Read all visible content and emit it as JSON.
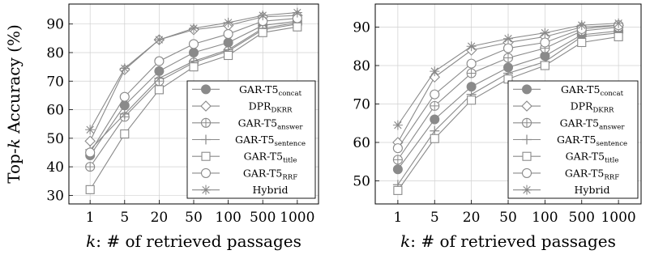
{
  "chart_data": [
    {
      "type": "line",
      "x": [
        "1",
        "5",
        "20",
        "50",
        "100",
        "500",
        "1000"
      ],
      "xlabel_var": "k",
      "xlabel_rest": ": # of retrieved passages",
      "ylabel_pre": "Top-",
      "ylabel_var": "k",
      "ylabel_post": " Accuracy (%)",
      "ylim": [
        27,
        97
      ],
      "yticks": [
        30,
        40,
        50,
        60,
        70,
        80,
        90
      ],
      "grid": true,
      "legend_position": "bottom-right",
      "series": [
        {
          "name": "GAR-T5",
          "sub": "concat",
          "marker": "filled-circle",
          "values": [
            44.0,
            61.5,
            73.5,
            80.0,
            83.5,
            89.5,
            91.0
          ]
        },
        {
          "name": "DPR",
          "sub": "DKRR",
          "marker": "diamond",
          "values": [
            49.0,
            74.0,
            84.5,
            88.0,
            89.5,
            92.5,
            93.0
          ]
        },
        {
          "name": "GAR-T5",
          "sub": "answer",
          "marker": "circle-plus",
          "values": [
            40.0,
            57.5,
            70.0,
            76.5,
            80.5,
            88.0,
            90.0
          ]
        },
        {
          "name": "GAR-T5",
          "sub": "sentence",
          "marker": "plus",
          "values": [
            46.0,
            58.5,
            71.0,
            77.0,
            81.0,
            88.5,
            90.5
          ]
        },
        {
          "name": "GAR-T5",
          "sub": "title",
          "marker": "square",
          "values": [
            32.0,
            51.5,
            67.0,
            75.0,
            79.0,
            87.0,
            89.0
          ]
        },
        {
          "name": "GAR-T5",
          "sub": "RRF",
          "marker": "circle",
          "values": [
            45.0,
            64.5,
            77.0,
            83.0,
            86.5,
            91.0,
            92.0
          ]
        },
        {
          "name": "Hybrid",
          "sub": "",
          "marker": "star",
          "values": [
            53.0,
            74.5,
            84.5,
            88.5,
            90.5,
            93.0,
            94.0
          ]
        }
      ]
    },
    {
      "type": "line",
      "x": [
        "1",
        "5",
        "20",
        "50",
        "100",
        "500",
        "1000"
      ],
      "xlabel_var": "k",
      "xlabel_rest": ": # of retrieved passages",
      "ylim": [
        44,
        96
      ],
      "yticks": [
        50,
        60,
        70,
        80,
        90
      ],
      "grid": true,
      "legend_position": "bottom-right",
      "series": [
        {
          "name": "GAR-T5",
          "sub": "concat",
          "marker": "filled-circle",
          "values": [
            53.0,
            66.0,
            74.5,
            79.5,
            82.5,
            88.0,
            89.0
          ]
        },
        {
          "name": "DPR",
          "sub": "DKRR",
          "marker": "diamond",
          "values": [
            60.0,
            77.0,
            84.0,
            86.0,
            87.5,
            90.0,
            90.5
          ]
        },
        {
          "name": "GAR-T5",
          "sub": "answer",
          "marker": "circle-plus",
          "values": [
            55.5,
            69.5,
            78.0,
            82.0,
            84.5,
            89.0,
            90.0
          ]
        },
        {
          "name": "GAR-T5",
          "sub": "sentence",
          "marker": "plus",
          "values": [
            49.0,
            63.0,
            72.5,
            78.0,
            81.0,
            87.5,
            88.5
          ]
        },
        {
          "name": "GAR-T5",
          "sub": "title",
          "marker": "square",
          "values": [
            47.5,
            61.0,
            71.0,
            76.5,
            80.0,
            86.0,
            87.5
          ]
        },
        {
          "name": "GAR-T5",
          "sub": "RRF",
          "marker": "circle",
          "values": [
            58.5,
            72.5,
            80.5,
            84.5,
            86.0,
            89.5,
            90.5
          ]
        },
        {
          "name": "Hybrid",
          "sub": "",
          "marker": "star",
          "values": [
            64.5,
            78.5,
            85.0,
            87.0,
            88.5,
            90.5,
            91.0
          ]
        }
      ]
    }
  ]
}
